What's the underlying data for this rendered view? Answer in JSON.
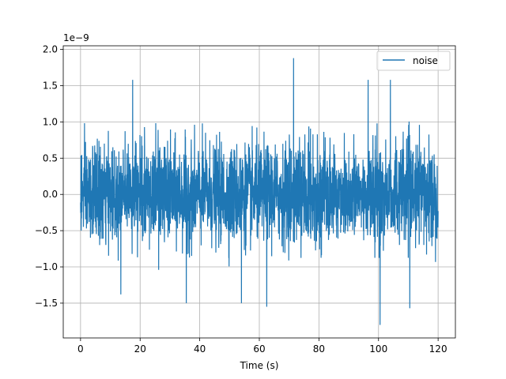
{
  "chart_data": {
    "type": "line",
    "title": "",
    "xlabel": "Time (s)",
    "ylabel": "",
    "y_offset_label": "1e−9",
    "xlim": [
      -5.8,
      125.8
    ],
    "ylim": [
      -1.98,
      2.05
    ],
    "x_ticks": [
      0,
      20,
      40,
      60,
      80,
      100,
      120
    ],
    "x_tick_labels": [
      "0",
      "20",
      "40",
      "60",
      "80",
      "100",
      "120"
    ],
    "y_ticks": [
      -1.5,
      -1.0,
      -0.5,
      0.0,
      0.5,
      1.0,
      1.5,
      2.0
    ],
    "y_tick_labels": [
      "−1.5",
      "−1.0",
      "−0.5",
      "0.0",
      "0.5",
      "1.0",
      "1.5",
      "2.0"
    ],
    "grid": true,
    "legend_position": "top-right",
    "series": [
      {
        "name": "noise",
        "color": "#1f77b4",
        "description_values": "dense noise signal",
        "x_range": [
          0,
          120
        ],
        "envelope_low": -1.0,
        "envelope_high": 1.0,
        "peaks": [
          {
            "x": 17.5,
            "y": 1.58
          },
          {
            "x": 71.5,
            "y": 1.88
          },
          {
            "x": 100.5,
            "y": -1.8
          },
          {
            "x": 62.5,
            "y": -1.55
          },
          {
            "x": 35.5,
            "y": -1.5
          },
          {
            "x": 104,
            "y": 1.58
          },
          {
            "x": 96.5,
            "y": 1.58
          },
          {
            "x": 54,
            "y": -1.5
          },
          {
            "x": 110.5,
            "y": -1.57
          },
          {
            "x": 13.5,
            "y": -1.38
          }
        ]
      }
    ]
  }
}
